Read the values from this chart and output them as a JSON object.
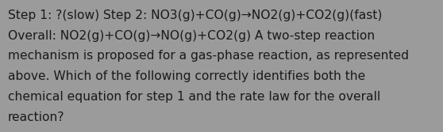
{
  "text_lines": [
    "Step 1: ?(slow) Step 2: NO3(g)+CO(g)→NO2(g)+CO2(g)(fast)",
    "Overall: NO2(g)+CO(g)→NO(g)+CO2(g) A two-step reaction",
    "mechanism is proposed for a gas-phase reaction, as represented",
    "above. Which of the following correctly identifies both the",
    "chemical equation for step 1 and the rate law for the overall",
    "reaction?"
  ],
  "background_color": "#9b9b9b",
  "text_color": "#1a1a1a",
  "font_size": 11.2,
  "fig_width": 5.58,
  "fig_height": 1.67,
  "dpi": 100
}
